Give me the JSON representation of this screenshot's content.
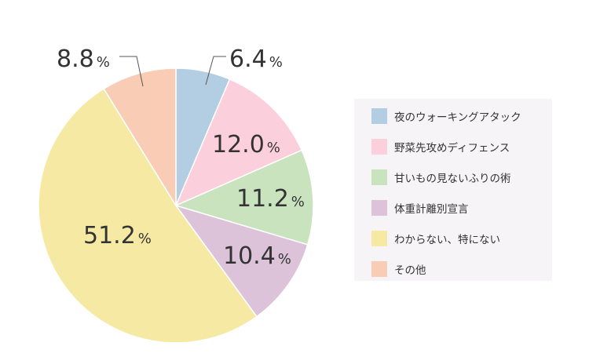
{
  "chart_data": {
    "type": "pie",
    "start": "top",
    "direction": "clockwise",
    "series": [
      {
        "name": "夜のウォーキングアタック",
        "value": 6.4,
        "label": "6.4",
        "color": "#b3cde3"
      },
      {
        "name": "野菜先攻めディフェンス",
        "value": 12.0,
        "label": "12.0",
        "color": "#fccfdc"
      },
      {
        "name": "甘いもの見ないふりの術",
        "value": 11.2,
        "label": "11.2",
        "color": "#c9e3bf"
      },
      {
        "name": "体重計離別宣言",
        "value": 10.4,
        "label": "10.4",
        "color": "#dcc3d9"
      },
      {
        "name": "わからない、特にない",
        "value": 51.2,
        "label": "51.2",
        "color": "#f6e9a3"
      },
      {
        "name": "その他",
        "value": 8.8,
        "label": "8.8",
        "color": "#f8ccb5"
      }
    ],
    "unit": "%",
    "legend_position": "right"
  }
}
